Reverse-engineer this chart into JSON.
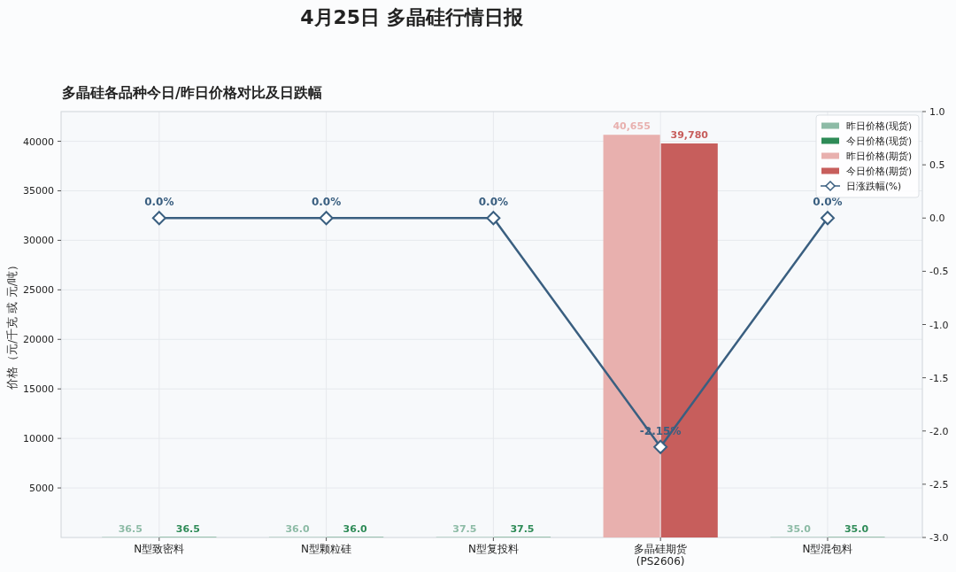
{
  "chart_data": {
    "type": "bar",
    "title": "4月25日 多晶硅行情日报",
    "subtitle": "多晶硅各品种今日/昨日价格对比及日跌幅",
    "ylabel": "价格（元/千克 或 元/吨）",
    "categories": [
      "N型致密料",
      "N型颗粒硅",
      "N型复投料",
      "多晶硅期货\n(PS2606)",
      "N型混包料"
    ],
    "series": [
      {
        "name": "昨日价格(现货)",
        "color": "#8dbba6",
        "values": [
          36.5,
          36.0,
          37.5,
          null,
          35.0
        ],
        "value_labels": [
          "36.5",
          "36.0",
          "37.5",
          null,
          "35.0"
        ]
      },
      {
        "name": "今日价格(现货)",
        "color": "#2e8b57",
        "values": [
          36.5,
          36.0,
          37.5,
          null,
          35.0
        ],
        "value_labels": [
          "36.5",
          "36.0",
          "37.5",
          null,
          "35.0"
        ]
      },
      {
        "name": "昨日价格(期货)",
        "color": "#e8b0ae",
        "values": [
          null,
          null,
          null,
          40655,
          null
        ],
        "value_labels": [
          null,
          null,
          null,
          "40,655",
          null
        ]
      },
      {
        "name": "今日价格(期货)",
        "color": "#c75e5c",
        "values": [
          null,
          null,
          null,
          39780,
          null
        ],
        "value_labels": [
          null,
          null,
          null,
          "39,780",
          null
        ]
      },
      {
        "name": "日涨跌幅(%)",
        "type": "line",
        "axis": "y2",
        "color": "#3a5f80",
        "values": [
          0.0,
          0.0,
          0.0,
          -2.15,
          0.0
        ],
        "value_labels": [
          "0.0%",
          "0.0%",
          "0.0%",
          "-2.15%",
          "0.0%"
        ]
      }
    ],
    "ylim": [
      0,
      43000
    ],
    "yticks": [
      5000,
      10000,
      15000,
      20000,
      25000,
      30000,
      35000,
      40000
    ],
    "y2lim": [
      -3,
      1
    ],
    "y2ticks": [
      {
        "value": -3,
        "label": "-3.0"
      },
      {
        "value": -2.5,
        "label": "-2.5"
      },
      {
        "value": -2,
        "label": "-2.0"
      },
      {
        "value": -1.5,
        "label": "-1.5"
      },
      {
        "value": -1,
        "label": "-1.0"
      },
      {
        "value": -0.5,
        "label": "-0.5"
      },
      {
        "value": 0,
        "label": "0.0"
      },
      {
        "value": 0.5,
        "label": "0.5"
      },
      {
        "value": 1,
        "label": "1.0"
      }
    ],
    "grid": true,
    "legend": "top right",
    "marker": "diamond",
    "line_style": "solid"
  }
}
